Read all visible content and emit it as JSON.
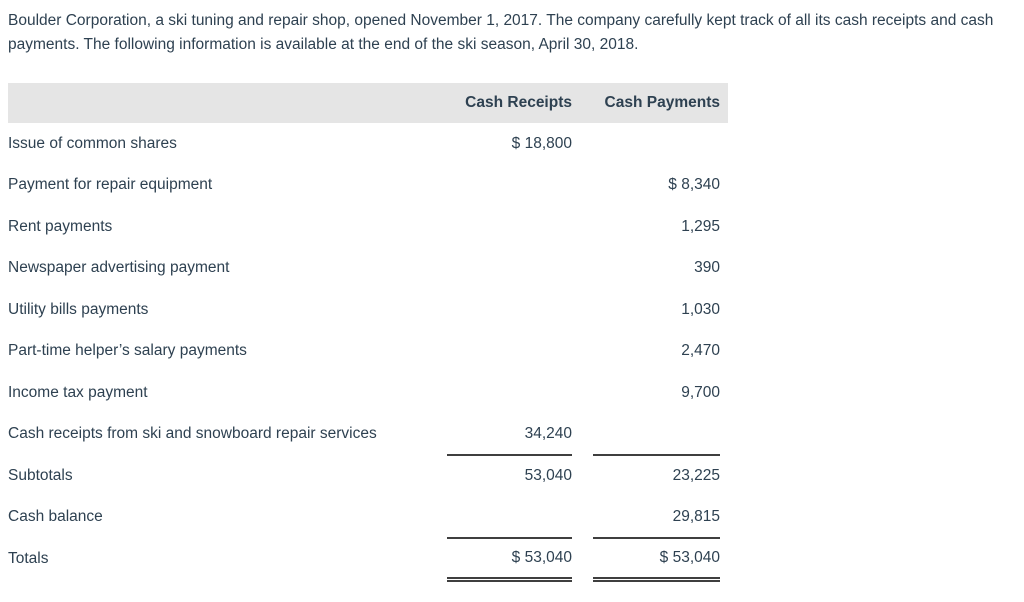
{
  "intro": "Boulder Corporation, a ski tuning and repair shop, opened November 1, 2017. The company carefully kept track of all its cash receipts and cash payments. The following information is available at the end of the ski season, April 30, 2018.",
  "table": {
    "header": {
      "label": "",
      "receipts": "Cash Receipts",
      "payments": "Cash Payments"
    },
    "rows": [
      {
        "label": "Issue of common shares",
        "receipts": "$ 18,800",
        "payments": ""
      },
      {
        "label": "Payment for repair equipment",
        "receipts": "",
        "payments": "$ 8,340"
      },
      {
        "label": "Rent payments",
        "receipts": "",
        "payments": "1,295"
      },
      {
        "label": "Newspaper advertising payment",
        "receipts": "",
        "payments": "390"
      },
      {
        "label": "Utility bills payments",
        "receipts": "",
        "payments": "1,030"
      },
      {
        "label": "Part-time helper’s salary payments",
        "receipts": "",
        "payments": "2,470"
      },
      {
        "label": "Income tax payment",
        "receipts": "",
        "payments": "9,700"
      },
      {
        "label": "Cash receipts from ski and snowboard repair services",
        "receipts": "34,240",
        "payments": "",
        "rule_below": true
      },
      {
        "label": "Subtotals",
        "receipts": "53,040",
        "payments": "23,225"
      },
      {
        "label": "Cash balance",
        "receipts": "",
        "payments": "29,815",
        "rule_below": true
      },
      {
        "label": "Totals",
        "receipts": "$ 53,040",
        "payments": "$ 53,040",
        "double_rule_below": true
      }
    ]
  },
  "colors": {
    "text": "#2e4151",
    "header_background": "#e5e5e5",
    "rule": "#3f3f3f",
    "page_background": "#ffffff"
  }
}
